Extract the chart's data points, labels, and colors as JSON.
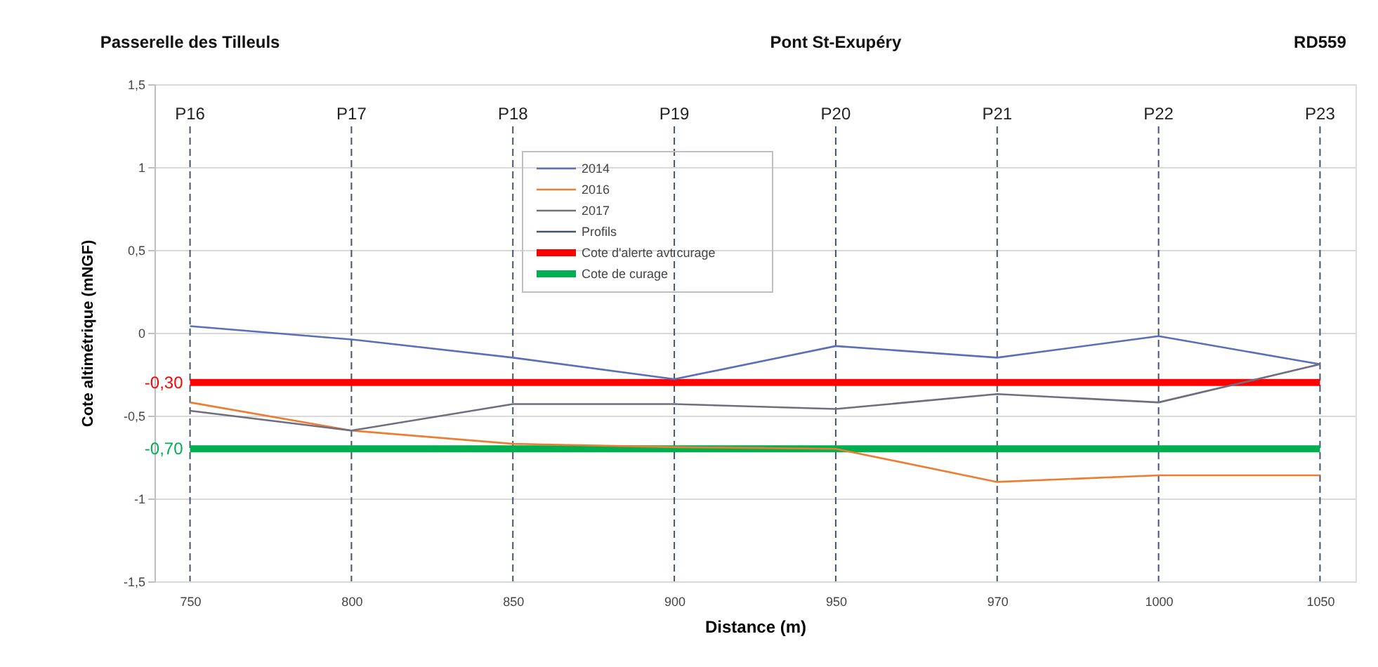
{
  "chart_data": {
    "type": "line",
    "xlabel": "Distance (m)",
    "ylabel": "Cote altimétrique (mNGF)",
    "categories": [
      "750",
      "800",
      "850",
      "900",
      "950",
      "970",
      "1000",
      "1050"
    ],
    "series": [
      {
        "name": "2014",
        "color": "#5a6fb8",
        "values": [
          0.04,
          -0.04,
          -0.15,
          -0.28,
          -0.08,
          -0.15,
          -0.02,
          -0.19
        ]
      },
      {
        "name": "2016",
        "color": "#ed7d31",
        "values": [
          -0.42,
          -0.59,
          -0.67,
          -0.69,
          -0.7,
          -0.9,
          -0.86,
          -0.86
        ]
      },
      {
        "name": "2017",
        "color": "#706e7e",
        "values": [
          -0.47,
          -0.59,
          -0.43,
          -0.43,
          -0.46,
          -0.37,
          -0.42,
          -0.19
        ]
      },
      {
        "name": "Cote d'alerte avt curage",
        "color": "#ff0000",
        "values": [
          -0.3,
          -0.3,
          -0.3,
          -0.3,
          -0.3,
          -0.3,
          -0.3,
          -0.3
        ],
        "value_labels": [
          "-0,30",
          null,
          null,
          null,
          null,
          null,
          null,
          null
        ]
      },
      {
        "name": "Cote de curage",
        "color": "#00b050",
        "values": [
          -0.7,
          -0.7,
          -0.7,
          -0.7,
          -0.7,
          -0.7,
          -0.7,
          -0.7
        ],
        "value_labels": [
          "-0,70",
          null,
          null,
          null,
          null,
          null,
          null,
          null
        ]
      }
    ],
    "ylim": [
      -1.5,
      1.5
    ],
    "yticks": [
      {
        "value": -1.5,
        "label": "-1,5"
      },
      -1,
      {
        "value": -0.5,
        "label": "-0,5"
      },
      0,
      {
        "value": 0.5,
        "label": "0,5"
      },
      1,
      {
        "value": 1.5,
        "label": "1,5"
      }
    ],
    "grid": "y",
    "legend": "top",
    "line_style": "solid",
    "marker": "none",
    "ref_lines": [
      {
        "axis": "x",
        "value": "750",
        "label": "P16",
        "color": "#44546a",
        "line_style": "dashed"
      },
      {
        "axis": "x",
        "value": "800",
        "label": "P17",
        "color": "#44546a",
        "line_style": "dashed"
      },
      {
        "axis": "x",
        "value": "850",
        "label": "P18",
        "color": "#44546a",
        "line_style": "dashed"
      },
      {
        "axis": "x",
        "value": "900",
        "label": "P19",
        "color": "#44546a",
        "line_style": "dashed"
      },
      {
        "axis": "x",
        "value": "950",
        "label": "P20",
        "color": "#44546a",
        "line_style": "dashed"
      },
      {
        "axis": "x",
        "value": "970",
        "label": "P21",
        "color": "#44546a",
        "line_style": "dashed"
      },
      {
        "axis": "x",
        "value": "1000",
        "label": "P22",
        "color": "#44546a",
        "line_style": "dashed"
      },
      {
        "axis": "x",
        "value": "1050",
        "label": "P23",
        "color": "#44546a",
        "line_style": "dashed"
      }
    ],
    "annotations": [
      "Passerelle des Tilleuls",
      "Pont St-Exupéry",
      "RD559",
      "Profils"
    ]
  }
}
